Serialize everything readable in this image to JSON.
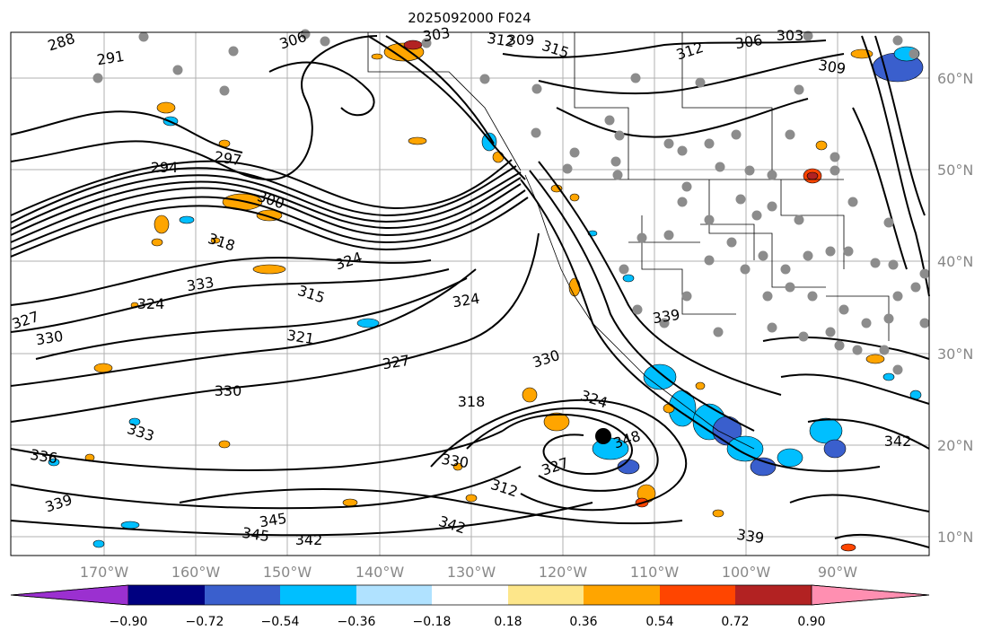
{
  "figure": {
    "title": "2025092000 F024"
  },
  "map": {
    "lat_labels": [
      "60°N",
      "50°N",
      "40°N",
      "30°N",
      "20°N",
      "10°N"
    ],
    "lon_labels": [
      "170°W",
      "160°W",
      "150°W",
      "140°W",
      "130°W",
      "120°W",
      "110°W",
      "100°W",
      "90°W"
    ],
    "contour_labels": [
      "288",
      "291",
      "294",
      "297",
      "300",
      "306",
      "303",
      "309",
      "312",
      "315",
      "312",
      "306",
      "303",
      "309",
      "318",
      "324",
      "333",
      "324",
      "321",
      "315",
      "327",
      "330",
      "330",
      "336",
      "333",
      "339",
      "345",
      "342",
      "345",
      "342",
      "348",
      "327",
      "318",
      "330",
      "312",
      "327",
      "339",
      "342",
      "339",
      "324",
      "330",
      "324"
    ],
    "stations_color": "#8c8c8c",
    "contour_color": "#000000"
  },
  "colorbar": {
    "tick_labels": [
      "−0.90",
      "−0.72",
      "−0.54",
      "−0.36",
      "−0.18",
      "0.18",
      "0.36",
      "0.54",
      "0.72",
      "0.90"
    ],
    "colors": [
      "#9b30d0",
      "#000080",
      "#3a5fcd",
      "#00bfff",
      "#b0e2ff",
      "#ffffff",
      "#fde68a",
      "#ffa500",
      "#ff4500",
      "#b22222",
      "#ff8fb1"
    ]
  }
}
